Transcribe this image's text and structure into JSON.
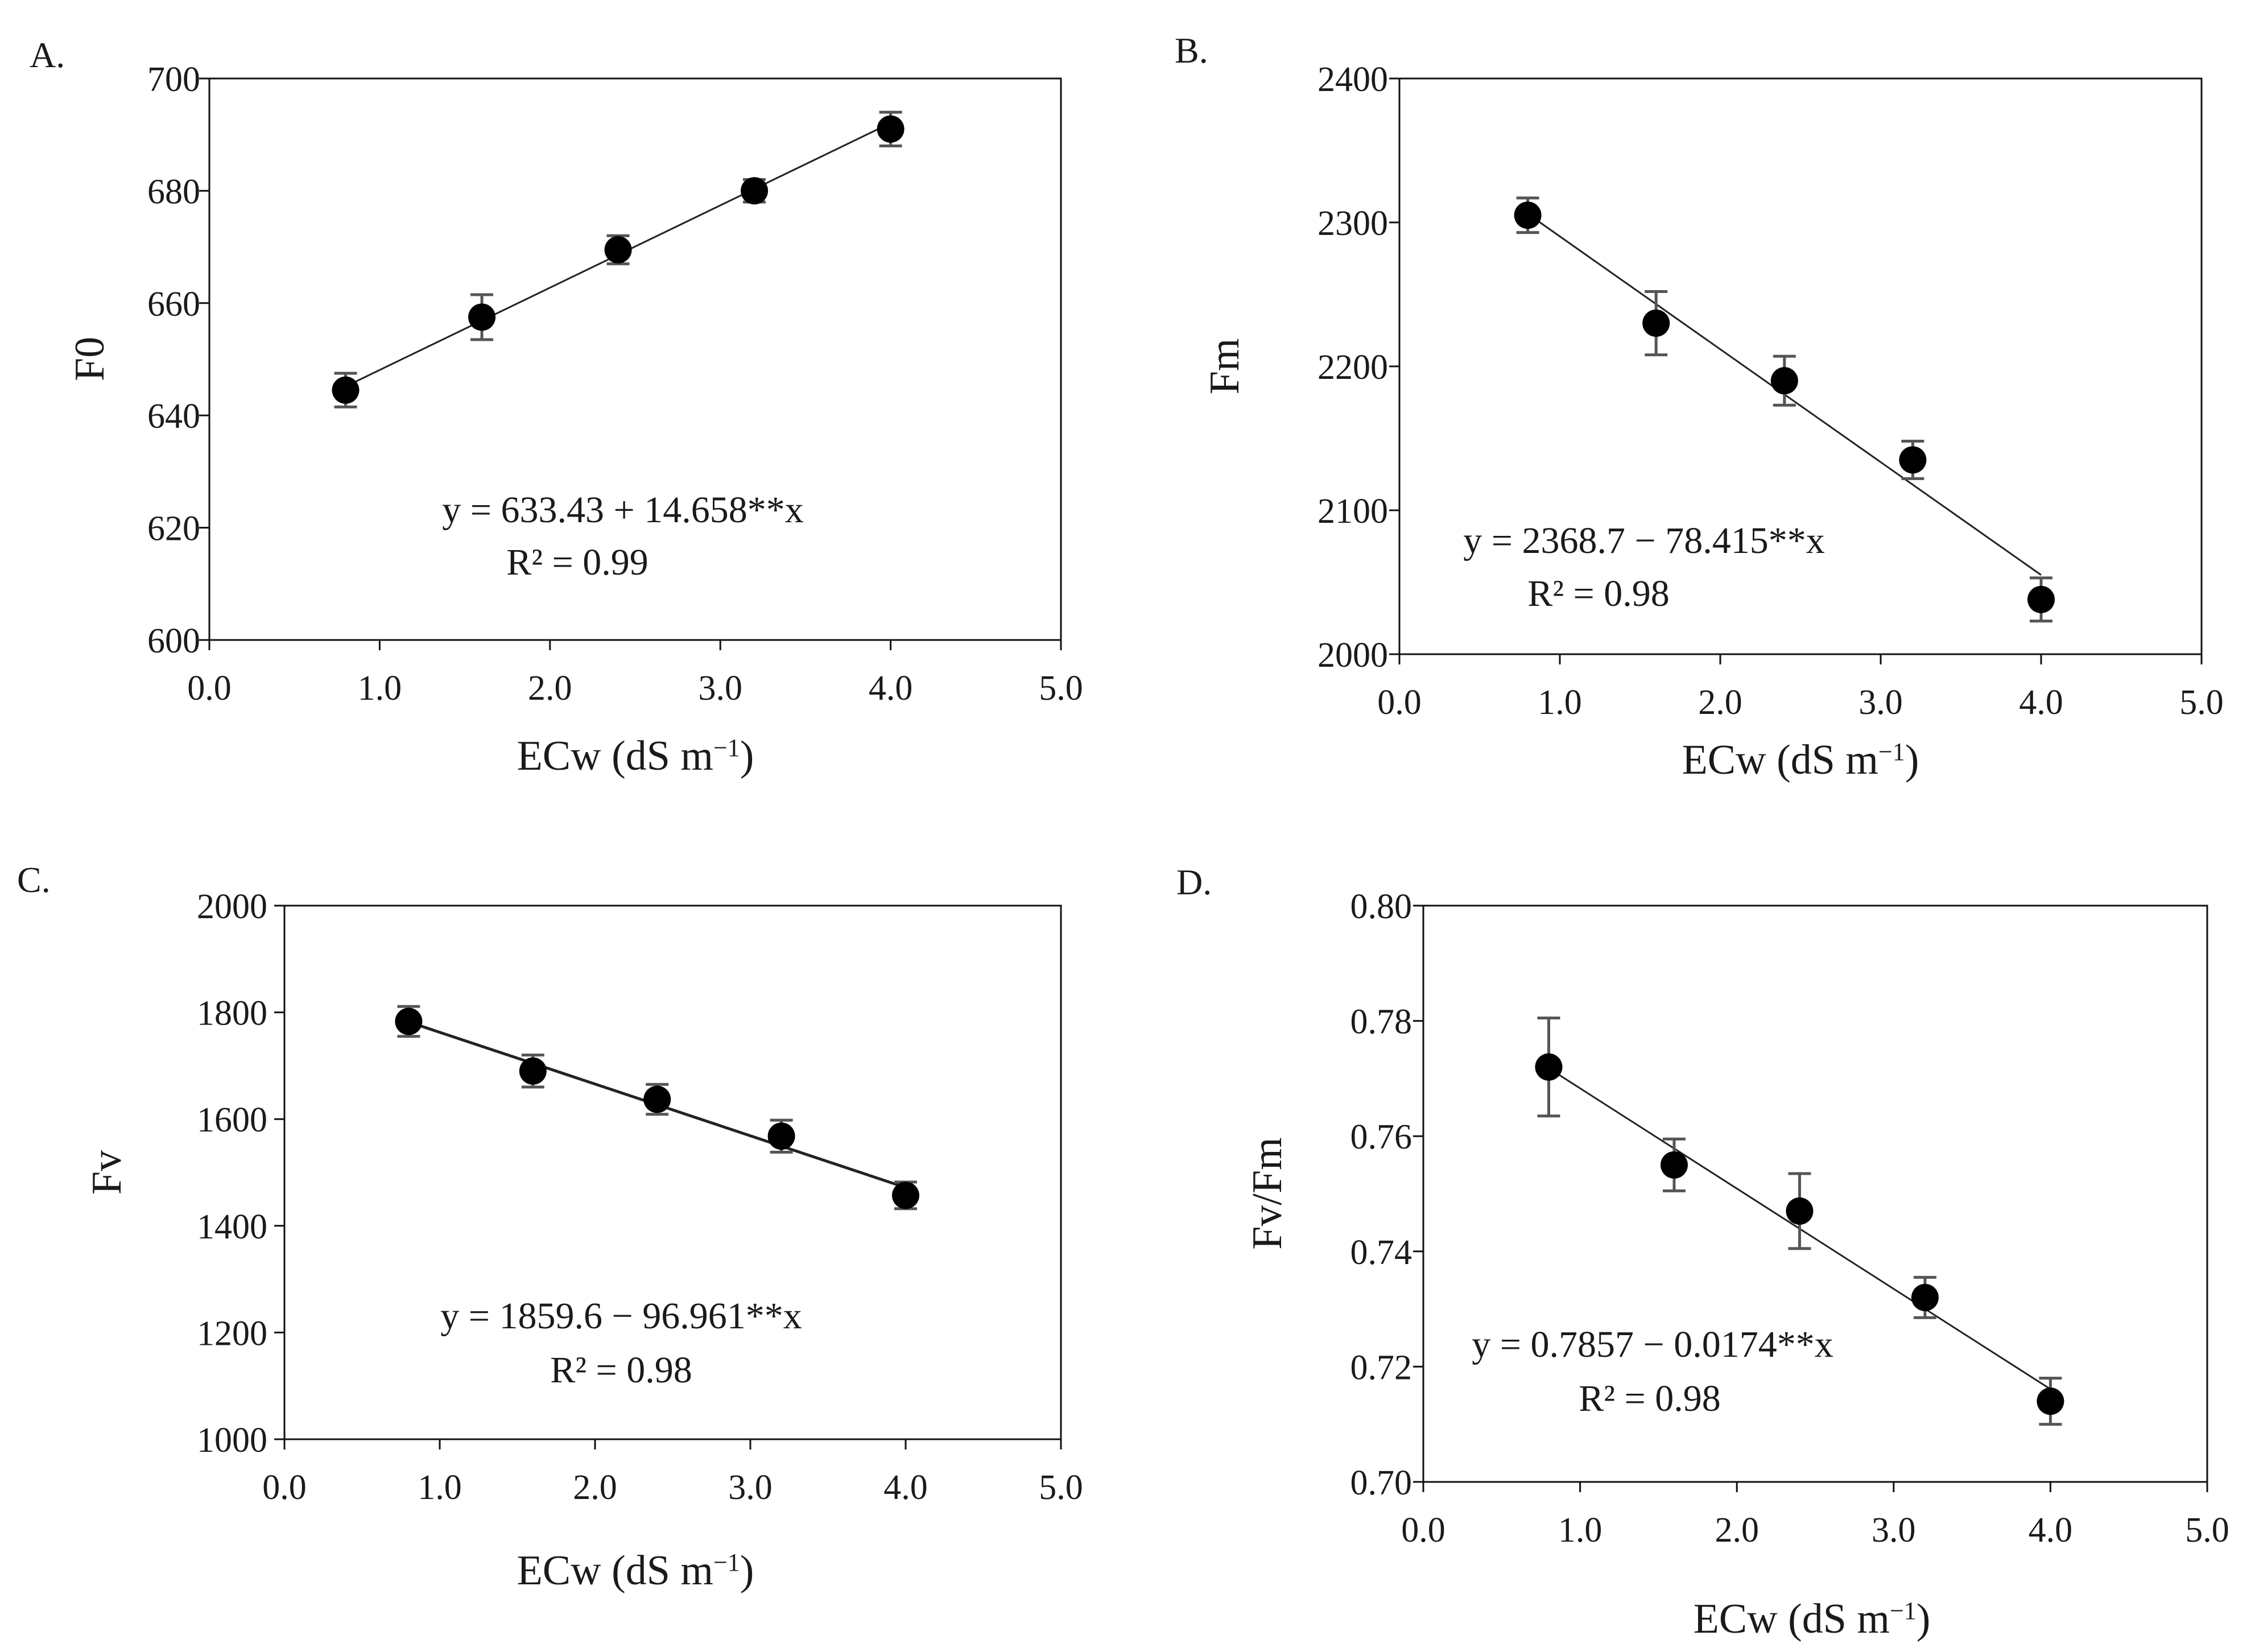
{
  "chart_data": [
    {
      "type": "scatter",
      "panel": "A.",
      "xlabel": "ECw (dS m",
      "xlabel_sup": "−1",
      "xlabel_close": ")",
      "ylabel": "F0",
      "xlim": [
        0,
        5
      ],
      "ylim": [
        600,
        700
      ],
      "xticks": [
        "0.0",
        "1.0",
        "2.0",
        "3.0",
        "4.0",
        "5.0"
      ],
      "yticks": [
        "600",
        "620",
        "640",
        "660",
        "680",
        "700"
      ],
      "x": [
        0.8,
        1.6,
        2.4,
        3.2,
        4.0
      ],
      "y": [
        644.5,
        657.5,
        669.5,
        680.0,
        691.0
      ],
      "error": [
        3.0,
        4.0,
        2.5,
        2.0,
        3.0
      ],
      "fit": {
        "intercept": 633.43,
        "slope": 14.658,
        "x_range": [
          0.8,
          4.0
        ]
      },
      "equation": "y = 633.43 + 14.658**x",
      "r2": "R² = 0.99"
    },
    {
      "type": "scatter",
      "panel": "B.",
      "xlabel": "ECw (dS m",
      "xlabel_sup": "−1",
      "xlabel_close": ")",
      "ylabel": "Fm",
      "xlim": [
        0,
        5
      ],
      "ylim": [
        2000,
        2400
      ],
      "xticks": [
        "0.0",
        "1.0",
        "2.0",
        "3.0",
        "4.0",
        "5.0"
      ],
      "yticks": [
        "2000",
        "2100",
        "2200",
        "2300",
        "2400"
      ],
      "x": [
        0.8,
        1.6,
        2.4,
        3.2,
        4.0
      ],
      "y": [
        2305,
        2230,
        2190,
        2135,
        2038
      ],
      "error": [
        12,
        22,
        17,
        13,
        15
      ],
      "fit": {
        "intercept": 2368.7,
        "slope": -78.415,
        "x_range": [
          0.8,
          4.0
        ]
      },
      "equation": "y = 2368.7 − 78.415**x",
      "r2": "R² = 0.98"
    },
    {
      "type": "scatter",
      "panel": "C.",
      "xlabel": "ECw (dS m",
      "xlabel_sup": "−1",
      "xlabel_close": ")",
      "ylabel": "Fv",
      "xlim": [
        0,
        5
      ],
      "ylim": [
        1000,
        2000
      ],
      "xticks": [
        "0.0",
        "1.0",
        "2.0",
        "3.0",
        "4.0",
        "5.0"
      ],
      "yticks": [
        "1000",
        "1200",
        "1400",
        "1600",
        "1800",
        "2000"
      ],
      "x": [
        0.8,
        1.6,
        2.4,
        3.2,
        4.0
      ],
      "y": [
        1783,
        1690,
        1637,
        1568,
        1457
      ],
      "error": [
        28,
        30,
        28,
        30,
        25
      ],
      "fit": {
        "intercept": 1859.6,
        "slope": -96.961,
        "x_range": [
          0.8,
          4.0
        ]
      },
      "equation": "y =  1859.6 − 96.961**x",
      "r2": "R² = 0.98"
    },
    {
      "type": "scatter",
      "panel": "D.",
      "xlabel": "ECw (dS m",
      "xlabel_sup": "−1",
      "xlabel_close": ")",
      "ylabel": "Fv/Fm",
      "xlim": [
        0,
        5
      ],
      "ylim": [
        0.7,
        0.8
      ],
      "xticks": [
        "0.0",
        "1.0",
        "2.0",
        "3.0",
        "4.0",
        "5.0"
      ],
      "yticks": [
        "0.70",
        "0.72",
        "0.74",
        "0.76",
        "0.78",
        "0.80"
      ],
      "x": [
        0.8,
        1.6,
        2.4,
        3.2,
        4.0
      ],
      "y": [
        0.772,
        0.755,
        0.747,
        0.732,
        0.714
      ],
      "error": [
        0.0085,
        0.0045,
        0.0065,
        0.0035,
        0.004
      ],
      "fit": {
        "intercept": 0.7857,
        "slope": -0.0174,
        "x_range": [
          0.8,
          4.0
        ]
      },
      "equation": "y = 0.7857 − 0.0174**x",
      "r2": "R² = 0.98"
    }
  ]
}
